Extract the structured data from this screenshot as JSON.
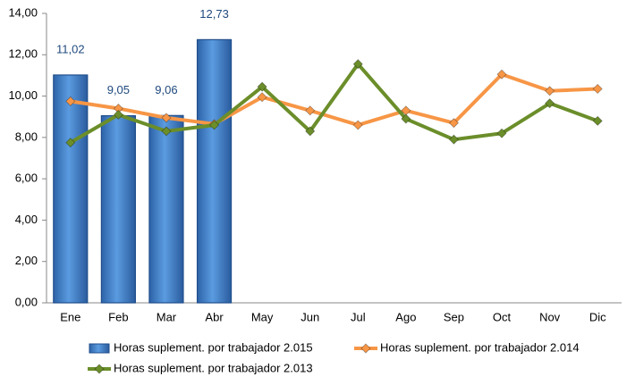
{
  "chart_data": {
    "type": "bar",
    "categories": [
      "Ene",
      "Feb",
      "Mar",
      "Abr",
      "May",
      "Jun",
      "Jul",
      "Ago",
      "Sep",
      "Oct",
      "Nov",
      "Dic"
    ],
    "series": [
      {
        "name": "Horas suplement. por trabajador 2.015",
        "type": "bar",
        "color": "#3a78c8",
        "values": [
          11.02,
          9.05,
          9.06,
          12.73,
          null,
          null,
          null,
          null,
          null,
          null,
          null,
          null
        ],
        "value_labels": [
          "11,02",
          "9,05",
          "9,06",
          "12,73",
          null,
          null,
          null,
          null,
          null,
          null,
          null,
          null
        ]
      },
      {
        "name": "Horas suplement. por trabajador 2.014",
        "type": "line",
        "color": "#f79646",
        "values": [
          9.75,
          9.4,
          8.95,
          8.65,
          9.95,
          9.3,
          8.6,
          9.3,
          8.7,
          11.05,
          10.25,
          10.35
        ]
      },
      {
        "name": "Horas suplement. por trabajador 2.013",
        "type": "line",
        "color": "#6b8e2a",
        "values": [
          7.75,
          9.1,
          8.3,
          8.6,
          10.45,
          8.3,
          11.55,
          8.9,
          7.9,
          8.2,
          9.65,
          8.8
        ]
      }
    ],
    "ylim": [
      0,
      14
    ],
    "yticks": [
      {
        "value": 0,
        "label": "0,00"
      },
      {
        "value": 2,
        "label": "2,00"
      },
      {
        "value": 4,
        "label": "4,00"
      },
      {
        "value": 6,
        "label": "6,00"
      },
      {
        "value": 8,
        "label": "8,00"
      },
      {
        "value": 10,
        "label": "10,00"
      },
      {
        "value": 12,
        "label": "12,00"
      },
      {
        "value": 14,
        "label": "14,00"
      }
    ],
    "grid": false
  }
}
